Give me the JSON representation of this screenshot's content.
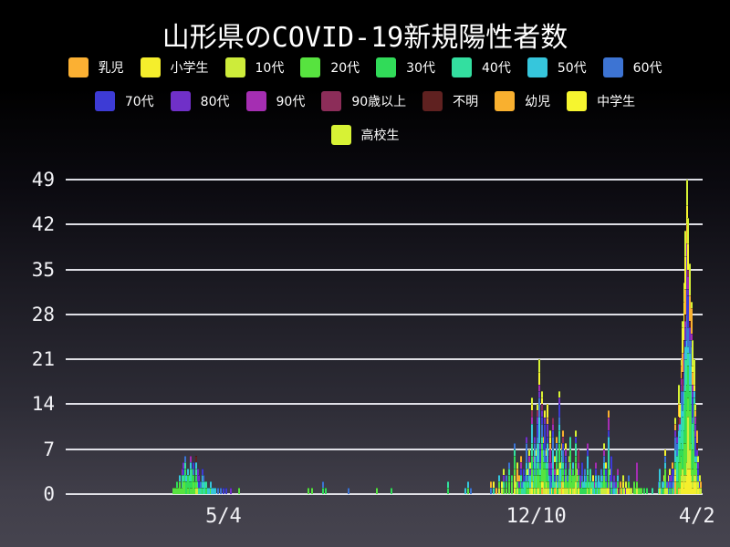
{
  "title": "山形県のCOVID-19新規陽性者数",
  "legend": {
    "rows": [
      [
        "乳児",
        "小学生",
        "10代",
        "20代",
        "30代",
        "40代",
        "50代",
        "60代"
      ],
      [
        "70代",
        "80代",
        "90代",
        "90歳以上",
        "不明",
        "幼児",
        "中学生"
      ],
      [
        "高校生"
      ]
    ]
  },
  "series": [
    {
      "name": "乳児",
      "color": "#fbb033"
    },
    {
      "name": "小学生",
      "color": "#f5ee2c"
    },
    {
      "name": "10代",
      "color": "#cdec3a"
    },
    {
      "name": "20代",
      "color": "#57e33f"
    },
    {
      "name": "30代",
      "color": "#31db59"
    },
    {
      "name": "40代",
      "color": "#33dfa0"
    },
    {
      "name": "50代",
      "color": "#36c6dc"
    },
    {
      "name": "60代",
      "color": "#3d74d3"
    },
    {
      "name": "70代",
      "color": "#3d3bd5"
    },
    {
      "name": "80代",
      "color": "#7030c8"
    },
    {
      "name": "90代",
      "color": "#a52eb2"
    },
    {
      "name": "90歳以上",
      "color": "#8c2d59"
    },
    {
      "name": "不明",
      "color": "#5f2120"
    },
    {
      "name": "幼児",
      "color": "#f9b02f"
    },
    {
      "name": "中学生",
      "color": "#f6f52f"
    },
    {
      "name": "高校生",
      "color": "#d7f235"
    }
  ],
  "chart_data": {
    "type": "bar",
    "stacked": true,
    "title": "山形県のCOVID-19新規陽性者数",
    "xlabel": "",
    "ylabel": "",
    "ylim": [
      0,
      49
    ],
    "y_ticks": [
      0,
      7,
      14,
      21,
      28,
      35,
      42,
      49
    ],
    "grid": "horizontal-white-lines",
    "legend_position": "top",
    "stacking_order_bottom_to_top": [
      "乳児",
      "小学生",
      "10代",
      "20代",
      "30代",
      "40代",
      "50代",
      "60代",
      "70代",
      "80代",
      "90代",
      "90歳以上",
      "不明",
      "幼児",
      "中学生",
      "高校生"
    ],
    "x_tick_labels": [
      {
        "label": "5/4",
        "day": 111
      },
      {
        "label": "12/10",
        "day": 331
      },
      {
        "label": "4/2",
        "day": 444
      }
    ],
    "n_days": 448,
    "daily_totals": [
      0,
      0,
      0,
      0,
      0,
      0,
      0,
      0,
      0,
      0,
      0,
      0,
      0,
      0,
      0,
      0,
      0,
      0,
      0,
      0,
      0,
      0,
      0,
      0,
      0,
      0,
      0,
      0,
      0,
      0,
      0,
      0,
      0,
      0,
      0,
      0,
      0,
      0,
      0,
      0,
      0,
      0,
      0,
      0,
      0,
      0,
      0,
      0,
      0,
      0,
      0,
      0,
      0,
      0,
      0,
      0,
      0,
      0,
      0,
      0,
      0,
      0,
      0,
      0,
      0,
      0,
      0,
      0,
      0,
      0,
      0,
      0,
      0,
      0,
      0,
      0,
      1,
      1,
      2,
      1,
      3,
      1,
      4,
      5,
      6,
      3,
      4,
      3,
      6,
      4,
      5,
      2,
      6,
      4,
      3,
      2,
      4,
      3,
      2,
      2,
      1,
      1,
      2,
      1,
      1,
      1,
      0,
      1,
      0,
      1,
      0,
      1,
      0,
      1,
      0,
      0,
      1,
      0,
      0,
      0,
      0,
      0,
      1,
      0,
      0,
      0,
      0,
      0,
      0,
      0,
      0,
      0,
      0,
      0,
      0,
      0,
      0,
      0,
      0,
      0,
      0,
      0,
      0,
      0,
      0,
      0,
      0,
      0,
      0,
      0,
      0,
      0,
      0,
      0,
      0,
      0,
      0,
      0,
      0,
      0,
      0,
      0,
      0,
      0,
      0,
      0,
      0,
      0,
      0,
      0,
      0,
      1,
      0,
      1,
      0,
      0,
      0,
      0,
      0,
      0,
      0,
      2,
      0,
      1,
      0,
      0,
      0,
      0,
      0,
      0,
      0,
      0,
      0,
      0,
      0,
      0,
      0,
      0,
      0,
      1,
      0,
      0,
      0,
      0,
      0,
      0,
      0,
      0,
      0,
      0,
      0,
      0,
      0,
      0,
      0,
      0,
      0,
      0,
      0,
      1,
      0,
      0,
      0,
      0,
      0,
      0,
      0,
      0,
      0,
      1,
      0,
      0,
      0,
      0,
      0,
      0,
      0,
      0,
      0,
      0,
      0,
      0,
      0,
      0,
      0,
      0,
      0,
      0,
      0,
      0,
      0,
      0,
      0,
      0,
      0,
      0,
      0,
      0,
      0,
      0,
      0,
      0,
      0,
      0,
      0,
      0,
      0,
      0,
      0,
      2,
      0,
      0,
      0,
      0,
      0,
      0,
      0,
      0,
      0,
      0,
      0,
      1,
      0,
      2,
      0,
      1,
      0,
      0,
      0,
      0,
      0,
      0,
      0,
      0,
      0,
      0,
      0,
      0,
      0,
      2,
      0,
      2,
      0,
      1,
      0,
      3,
      0,
      2,
      4,
      0,
      3,
      0,
      5,
      0,
      3,
      0,
      8,
      2,
      5,
      3,
      6,
      2,
      4,
      3,
      9,
      4,
      7,
      5,
      15,
      6,
      9,
      7,
      14,
      21,
      8,
      16,
      9,
      13,
      7,
      14,
      6,
      10,
      5,
      12,
      6,
      9,
      4,
      16,
      5,
      8,
      10,
      4,
      8,
      3,
      6,
      9,
      4,
      5,
      3,
      10,
      4,
      7,
      3,
      5,
      2,
      4,
      3,
      8,
      2,
      4,
      2,
      3,
      2,
      5,
      2,
      3,
      2,
      4,
      3,
      8,
      5,
      2,
      13,
      4,
      6,
      2,
      3,
      2,
      4,
      1,
      2,
      1,
      3,
      1,
      2,
      1,
      3,
      1,
      1,
      0,
      2,
      1,
      5,
      1,
      1,
      1,
      0,
      1,
      0,
      1,
      0,
      0,
      0,
      1,
      0,
      0,
      0,
      2,
      4,
      1,
      2,
      3,
      7,
      2,
      3,
      4,
      3,
      5,
      4,
      12,
      9,
      17,
      14,
      21,
      27,
      33,
      41,
      49,
      43,
      36,
      30,
      24,
      21,
      14,
      10,
      6,
      3,
      2
    ]
  }
}
